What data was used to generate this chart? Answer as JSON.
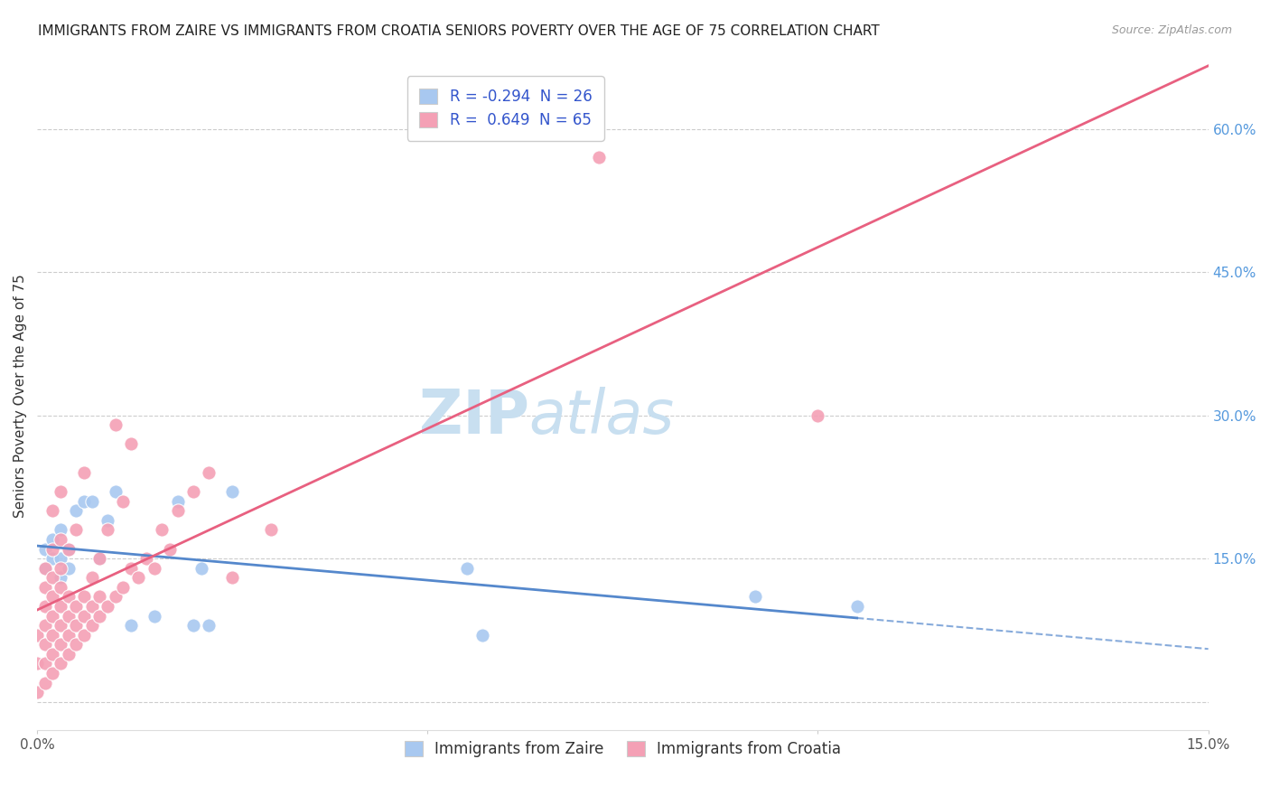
{
  "title": "IMMIGRANTS FROM ZAIRE VS IMMIGRANTS FROM CROATIA SENIORS POVERTY OVER THE AGE OF 75 CORRELATION CHART",
  "source": "Source: ZipAtlas.com",
  "ylabel": "Seniors Poverty Over the Age of 75",
  "xlim": [
    0.0,
    0.15
  ],
  "ylim": [
    -0.03,
    0.67
  ],
  "ytick_labels_right": [
    "",
    "15.0%",
    "30.0%",
    "45.0%",
    "60.0%"
  ],
  "ytick_positions_right": [
    0.0,
    0.15,
    0.3,
    0.45,
    0.6
  ],
  "watermark_zip": "ZIP",
  "watermark_atlas": "atlas",
  "zaire_R": -0.294,
  "zaire_N": 26,
  "croatia_R": 0.649,
  "croatia_N": 65,
  "zaire_color": "#a8c8f0",
  "croatia_color": "#f4a0b5",
  "zaire_line_color": "#5588cc",
  "croatia_line_color": "#e86080",
  "grid_color": "#cccccc",
  "background_color": "#ffffff",
  "zaire_x": [
    0.001,
    0.001,
    0.002,
    0.002,
    0.003,
    0.003,
    0.003,
    0.004,
    0.004,
    0.005,
    0.006,
    0.007,
    0.008,
    0.009,
    0.01,
    0.012,
    0.015,
    0.018,
    0.02,
    0.021,
    0.022,
    0.025,
    0.055,
    0.057,
    0.092,
    0.105
  ],
  "zaire_y": [
    0.14,
    0.16,
    0.15,
    0.17,
    0.13,
    0.15,
    0.18,
    0.14,
    0.16,
    0.2,
    0.21,
    0.21,
    0.15,
    0.19,
    0.22,
    0.08,
    0.09,
    0.21,
    0.08,
    0.14,
    0.08,
    0.22,
    0.14,
    0.07,
    0.11,
    0.1
  ],
  "croatia_x": [
    0.0,
    0.0,
    0.0,
    0.001,
    0.001,
    0.001,
    0.001,
    0.001,
    0.001,
    0.001,
    0.002,
    0.002,
    0.002,
    0.002,
    0.002,
    0.002,
    0.002,
    0.002,
    0.003,
    0.003,
    0.003,
    0.003,
    0.003,
    0.003,
    0.003,
    0.003,
    0.004,
    0.004,
    0.004,
    0.004,
    0.004,
    0.005,
    0.005,
    0.005,
    0.005,
    0.006,
    0.006,
    0.006,
    0.006,
    0.007,
    0.007,
    0.007,
    0.008,
    0.008,
    0.008,
    0.009,
    0.009,
    0.01,
    0.01,
    0.011,
    0.011,
    0.012,
    0.012,
    0.013,
    0.014,
    0.015,
    0.016,
    0.017,
    0.018,
    0.02,
    0.022,
    0.025,
    0.03,
    0.072,
    0.1
  ],
  "croatia_y": [
    0.01,
    0.04,
    0.07,
    0.02,
    0.04,
    0.06,
    0.08,
    0.1,
    0.12,
    0.14,
    0.03,
    0.05,
    0.07,
    0.09,
    0.11,
    0.13,
    0.16,
    0.2,
    0.04,
    0.06,
    0.08,
    0.1,
    0.12,
    0.14,
    0.17,
    0.22,
    0.05,
    0.07,
    0.09,
    0.11,
    0.16,
    0.06,
    0.08,
    0.1,
    0.18,
    0.07,
    0.09,
    0.11,
    0.24,
    0.08,
    0.1,
    0.13,
    0.09,
    0.11,
    0.15,
    0.1,
    0.18,
    0.11,
    0.29,
    0.12,
    0.21,
    0.14,
    0.27,
    0.13,
    0.15,
    0.14,
    0.18,
    0.16,
    0.2,
    0.22,
    0.24,
    0.13,
    0.18,
    0.57,
    0.3
  ],
  "title_fontsize": 11,
  "source_fontsize": 9,
  "label_fontsize": 11,
  "legend_fontsize": 12,
  "watermark_fontsize": 48,
  "watermark_color_zip": "#c8dff0",
  "watermark_color_atlas": "#c8dff0",
  "dot_size": 120
}
